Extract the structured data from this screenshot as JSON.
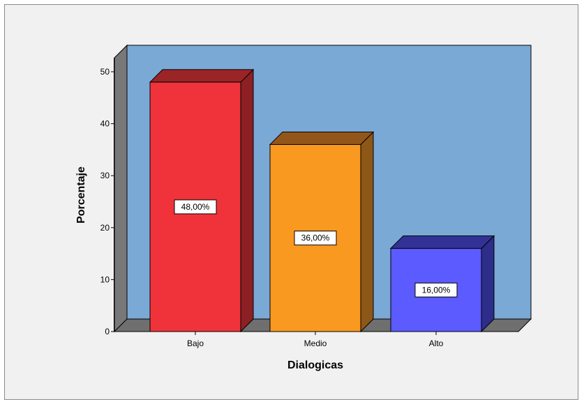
{
  "chart_data": {
    "type": "bar",
    "title": "",
    "xlabel": "Dialogicas",
    "ylabel": "Porcentaje",
    "categories": [
      "Bajo",
      "Medio",
      "Alto"
    ],
    "values": [
      48,
      36,
      16
    ],
    "data_labels": [
      "48,00%",
      "36,00%",
      "16,00%"
    ],
    "ylim": [
      0,
      50
    ],
    "yticks": [
      0,
      10,
      20,
      30,
      40,
      50
    ],
    "ytick_labels": [
      "0",
      "10",
      "20",
      "30",
      "40",
      "50"
    ],
    "grid": false,
    "legend": "none",
    "three_d": true,
    "colors": {
      "plot_back": "#7ba9d6",
      "side_wall": "#787878",
      "floor": "#6f6f6f",
      "frame_bg": "#f1f1f1",
      "bars": [
        {
          "front": "#f0333a",
          "top": "#9b2427",
          "side": "#8c2024"
        },
        {
          "front": "#fa991f",
          "top": "#93561a",
          "side": "#8d5716"
        },
        {
          "front": "#5b5bff",
          "top": "#323296",
          "side": "#2d2d8a"
        }
      ]
    }
  }
}
